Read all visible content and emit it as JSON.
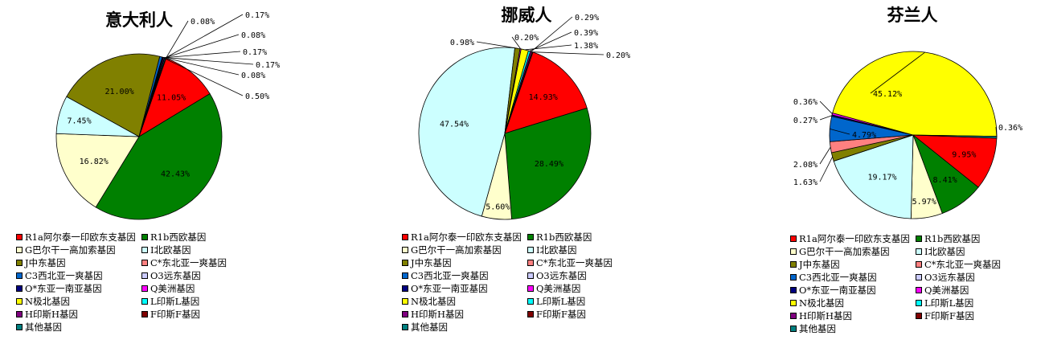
{
  "legend_labels": [
    "R1a阿尔泰一印欧东支基因",
    "R1b西欧基因",
    "G巴尔干一高加索基因",
    "I北欧基因",
    "J中东基因",
    "C*东北亚一爽基因",
    "C3西北亚一爽基因",
    "O3远东基因",
    "O*东亚一南亚基因",
    "Q美洲基因",
    "N极北基因",
    "L印斯L基因",
    "H印斯H基因",
    "F印斯F基因",
    "其他基因"
  ],
  "colors": [
    "#ff0000",
    "#008000",
    "#ffffcc",
    "#ccffff",
    "#808000",
    "#ff8080",
    "#0066cc",
    "#ccccff",
    "#000080",
    "#ff00ff",
    "#ffff00",
    "#00ffff",
    "#800080",
    "#800000",
    "#008080"
  ],
  "chart_data": [
    {
      "type": "pie",
      "title": "意大利人",
      "categories": [
        "R1a阿尔泰一印欧东支基因",
        "R1b西欧基因",
        "G巴尔干一高加索基因",
        "I北欧基因",
        "J中东基因",
        "C*东北亚一爽基因",
        "C3西北亚一爽基因",
        "O3远东基因",
        "O*东亚一南亚基因",
        "Q美洲基因",
        "N极北基因",
        "L印斯L基因",
        "H印斯H基因",
        "F印斯F基因",
        "其他基因"
      ],
      "values": [
        11.05,
        42.43,
        16.82,
        7.45,
        21.0,
        0.0,
        0.5,
        0.08,
        0.17,
        0.17,
        0.08,
        0.17,
        0.08,
        0.0,
        0.0
      ],
      "labels": [
        "11.05%",
        "42.43%",
        "16.82%",
        "7.45%",
        "21.00%",
        "",
        "0.50%",
        "0.08%",
        "0.17%",
        "0.17%",
        "0.08%",
        "0.17%",
        "0.08%",
        "",
        ""
      ]
    },
    {
      "type": "pie",
      "title": "挪威人",
      "categories": [
        "R1a阿尔泰一印欧东支基因",
        "R1b西欧基因",
        "G巴尔干一高加索基因",
        "I北欧基因",
        "J中东基因",
        "C*东北亚一爽基因",
        "C3西北亚一爽基因",
        "O3远东基因",
        "O*东亚一南亚基因",
        "Q美洲基因",
        "N极北基因",
        "L印斯L基因",
        "H印斯H基因",
        "F印斯F基因",
        "其他基因"
      ],
      "values": [
        14.93,
        28.49,
        5.6,
        47.54,
        0.98,
        0.0,
        0.0,
        0.0,
        0.0,
        0.2,
        1.38,
        0.39,
        0.29,
        0.2,
        0.0
      ],
      "labels": [
        "14.93%",
        "28.49%",
        "5.60%",
        "47.54%",
        "0.98%",
        "",
        "",
        "",
        "",
        "0.20%",
        "1.38%",
        "0.39%",
        "0.29%",
        "0.20%",
        ""
      ]
    },
    {
      "type": "pie",
      "title": "芬兰人",
      "categories": [
        "R1a阿尔泰一印欧东支基因",
        "R1b西欧基因",
        "G巴尔干一高加索基因",
        "I北欧基因",
        "J中东基因",
        "C*东北亚一爽基因",
        "C3西北亚一爽基因",
        "O3远东基因",
        "O*东亚一南亚基因",
        "Q美洲基因",
        "N极北基因",
        "L印斯L基因",
        "H印斯H基因",
        "F印斯F基因",
        "其他基因"
      ],
      "values": [
        9.95,
        8.41,
        5.97,
        19.17,
        1.63,
        2.08,
        4.79,
        0.0,
        0.27,
        0.36,
        45.12,
        0.0,
        0.0,
        0.0,
        0.36
      ],
      "labels": [
        "9.95%",
        "8.41%",
        "5.97%",
        "19.17%",
        "1.63%",
        "2.08%",
        "4.79%",
        "",
        "0.27%",
        "0.36%",
        "45.12%",
        "",
        "",
        "",
        "0.36%"
      ]
    }
  ]
}
